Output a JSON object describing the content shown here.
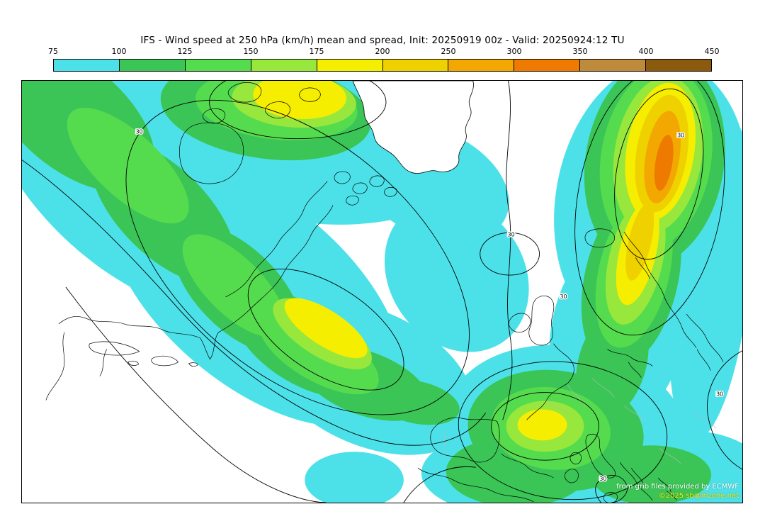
{
  "title": "IFS - Wind speed at 250 hPa (km/h) mean and spread, Init: 20250919 00z - Valid: 20250924:12 TU",
  "colorbar": {
    "ticks": [
      "75",
      "100",
      "125",
      "150",
      "175",
      "200",
      "250",
      "300",
      "350",
      "400",
      "450"
    ],
    "colors": [
      "#4CE1E8",
      "#3BC556",
      "#55DB4E",
      "#98E73C",
      "#F6EE00",
      "#EFD100",
      "#F2A800",
      "#EE7A00",
      "#BE8A3C",
      "#8B5A0F"
    ]
  },
  "palette": {
    "c75": "#4CE1E8",
    "c100": "#3BC556",
    "c125": "#55DB4E",
    "c150": "#98E73C",
    "c175": "#F6EE00",
    "c200": "#EFD100",
    "c250": "#F2A800",
    "c300": "#EE7A00",
    "c350": "#BE8A3C",
    "c400": "#8B5A0F",
    "coastline": "#000000",
    "border_gray": "#b8b8b8",
    "background": "#ffffff"
  },
  "map": {
    "contour_label": "30",
    "credits": {
      "provider": "from grib files provided by ECMWF",
      "copyright": "©2025 sb@irizone.net"
    }
  }
}
